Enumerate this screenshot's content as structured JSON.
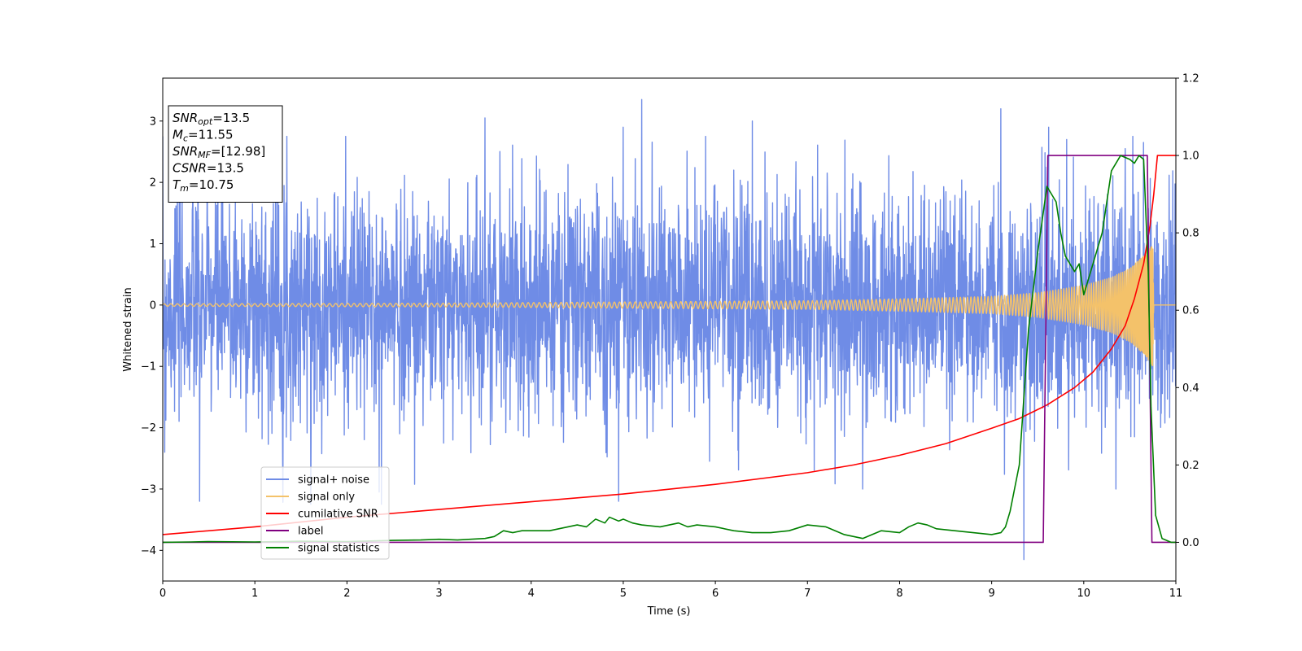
{
  "chart_data": {
    "type": "line",
    "xlabel": "Time (s)",
    "ylabel": "Whitened strain",
    "xlim": [
      0,
      11
    ],
    "ylim_left": [
      -4.5,
      3.7
    ],
    "ylim_right": [
      -0.1,
      1.2
    ],
    "x_ticks": [
      "0",
      "1",
      "2",
      "3",
      "4",
      "5",
      "6",
      "7",
      "8",
      "9",
      "10",
      "11"
    ],
    "y_left_ticks": [
      "−4",
      "−3",
      "−2",
      "−1",
      "0",
      "1",
      "2",
      "3"
    ],
    "y_right_ticks": [
      "0.0",
      "0.2",
      "0.4",
      "0.6",
      "0.8",
      "1.0",
      "1.2"
    ],
    "grid": false,
    "legend_position": "lower-left",
    "annotation": [
      {
        "base": "SNR",
        "sub": "opt",
        "value": "=13.5"
      },
      {
        "base": "M",
        "sub": "c",
        "value": "=11.55"
      },
      {
        "base": "SNR",
        "sub": "MF",
        "value": "=[12.98]"
      },
      {
        "base": "CSNR",
        "sub": "",
        "value": "=13.5"
      },
      {
        "base": "T",
        "sub": "m",
        "value": "=10.75"
      }
    ],
    "series": [
      {
        "name": "signal+ noise",
        "axis": "left",
        "color": "#6f8ce6",
        "kind": "noise",
        "envelope": {
          "min": -4.15,
          "max": 3.35,
          "typical_amplitude": 1.0
        },
        "outliers": [
          {
            "x": 0.02,
            "y": -2.4
          },
          {
            "x": 0.4,
            "y": -3.2
          },
          {
            "x": 1.25,
            "y": 2.55
          },
          {
            "x": 2.35,
            "y": -3.05
          },
          {
            "x": 3.5,
            "y": 3.05
          },
          {
            "x": 4.95,
            "y": -3.2
          },
          {
            "x": 5.0,
            "y": 2.9
          },
          {
            "x": 5.2,
            "y": 3.35
          },
          {
            "x": 6.4,
            "y": 3.0
          },
          {
            "x": 7.6,
            "y": -3.0
          },
          {
            "x": 9.1,
            "y": 3.2
          },
          {
            "x": 9.35,
            "y": -4.15
          },
          {
            "x": 9.62,
            "y": 2.9
          },
          {
            "x": 10.35,
            "y": -3.0
          },
          {
            "x": 10.45,
            "y": 2.55
          },
          {
            "x": 10.65,
            "y": 2.65
          }
        ]
      },
      {
        "name": "signal only",
        "axis": "left",
        "color": "#f4c26a",
        "kind": "chirp",
        "envelope": [
          [
            0,
            0.02
          ],
          [
            3,
            0.03
          ],
          [
            5,
            0.05
          ],
          [
            7,
            0.07
          ],
          [
            8,
            0.1
          ],
          [
            9,
            0.14
          ],
          [
            9.5,
            0.2
          ],
          [
            10,
            0.32
          ],
          [
            10.3,
            0.45
          ],
          [
            10.5,
            0.6
          ],
          [
            10.65,
            0.8
          ],
          [
            10.72,
            0.95
          ],
          [
            10.75,
            1.0
          ],
          [
            10.76,
            0.0
          ],
          [
            11,
            0.0
          ]
        ]
      },
      {
        "name": "cumilative SNR",
        "axis": "right",
        "color": "#ff0000",
        "x": [
          0,
          1,
          2,
          3,
          4,
          5,
          6,
          7,
          7.5,
          8,
          8.5,
          9,
          9.3,
          9.6,
          9.9,
          10.1,
          10.3,
          10.45,
          10.55,
          10.65,
          10.72,
          10.76,
          10.8,
          11
        ],
        "y": [
          0.02,
          0.04,
          0.065,
          0.085,
          0.105,
          0.125,
          0.15,
          0.18,
          0.2,
          0.225,
          0.255,
          0.295,
          0.32,
          0.355,
          0.4,
          0.44,
          0.5,
          0.56,
          0.63,
          0.72,
          0.82,
          0.9,
          1.0,
          1.0
        ]
      },
      {
        "name": "label",
        "axis": "right",
        "color": "#800080",
        "x": [
          0,
          9.56,
          9.61,
          10.69,
          10.74,
          11
        ],
        "y": [
          0,
          0,
          1.0,
          1.0,
          0,
          0
        ]
      },
      {
        "name": "signal statistics",
        "axis": "right",
        "color": "#008000",
        "x": [
          0,
          0.3,
          0.5,
          1,
          1.5,
          2,
          2.5,
          2.8,
          3.0,
          3.2,
          3.5,
          3.6,
          3.7,
          3.8,
          3.9,
          4.0,
          4.2,
          4.3,
          4.4,
          4.5,
          4.6,
          4.7,
          4.8,
          4.85,
          4.95,
          5.0,
          5.1,
          5.2,
          5.4,
          5.5,
          5.6,
          5.7,
          5.8,
          6.0,
          6.2,
          6.4,
          6.6,
          6.8,
          7.0,
          7.2,
          7.4,
          7.6,
          7.8,
          8.0,
          8.1,
          8.2,
          8.3,
          8.4,
          8.6,
          8.8,
          9.0,
          9.1,
          9.15,
          9.2,
          9.3,
          9.4,
          9.5,
          9.6,
          9.7,
          9.75,
          9.8,
          9.9,
          9.95,
          10.0,
          10.1,
          10.2,
          10.3,
          10.4,
          10.5,
          10.55,
          10.6,
          10.65,
          10.7,
          10.73,
          10.78,
          10.85,
          10.95,
          11
        ],
        "y": [
          0,
          0.001,
          0.002,
          0.001,
          0.003,
          0.002,
          0.005,
          0.006,
          0.008,
          0.006,
          0.01,
          0.015,
          0.03,
          0.025,
          0.03,
          0.03,
          0.03,
          0.035,
          0.04,
          0.045,
          0.04,
          0.06,
          0.05,
          0.065,
          0.055,
          0.06,
          0.05,
          0.045,
          0.04,
          0.045,
          0.05,
          0.04,
          0.045,
          0.04,
          0.03,
          0.025,
          0.025,
          0.03,
          0.045,
          0.04,
          0.02,
          0.01,
          0.03,
          0.025,
          0.04,
          0.05,
          0.045,
          0.035,
          0.03,
          0.025,
          0.02,
          0.025,
          0.04,
          0.08,
          0.2,
          0.55,
          0.75,
          0.92,
          0.88,
          0.8,
          0.74,
          0.7,
          0.72,
          0.64,
          0.72,
          0.8,
          0.96,
          1.0,
          0.99,
          0.98,
          1.0,
          0.99,
          0.7,
          0.35,
          0.07,
          0.01,
          0.0,
          0.0
        ]
      }
    ]
  }
}
